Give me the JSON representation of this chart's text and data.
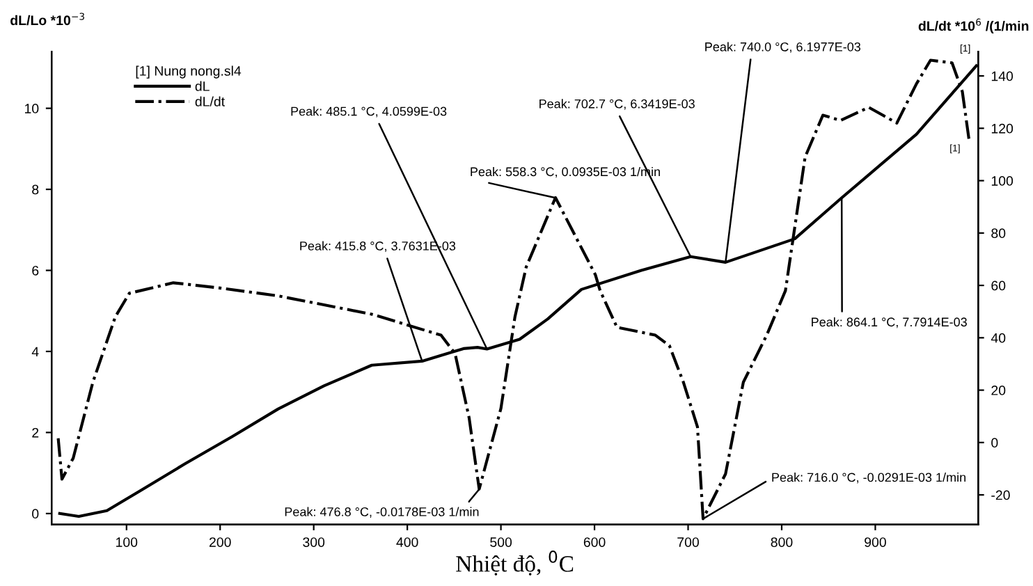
{
  "chart_data": {
    "type": "line",
    "xlabel": "Nhiệt độ, $^{0}$C",
    "ylabel": "dL/Lo *10$^{−3}$",
    "y2label": "dL/dt *10$^{6}$ /(1/min",
    "legend_title": "[1] Nung nong.sl4",
    "legend": "top left",
    "grid": false,
    "xlim": [
      20,
      1010
    ],
    "xticks": [
      100,
      200,
      300,
      400,
      500,
      600,
      700,
      800,
      900
    ],
    "ylim": [
      -0.27,
      11.4
    ],
    "yticks": [
      0,
      2,
      4,
      6,
      8,
      10
    ],
    "y2lim": [
      -31.3,
      149.3
    ],
    "y2ticks": [
      -20,
      0,
      20,
      40,
      60,
      80,
      100,
      120,
      140
    ],
    "series": [
      {
        "name": "dL",
        "color": "#000000",
        "line_style": "solid",
        "x": [
          28.6,
          49,
          79,
          113,
          162,
          213,
          262,
          311,
          362,
          415.8,
          460,
          475,
          485.1,
          520,
          550,
          586,
          650,
          702.7,
          740.0,
          814,
          864.1,
          944,
          1008
        ],
        "values": [
          0,
          -0.07,
          0.07,
          0.54,
          1.22,
          1.9,
          2.58,
          3.15,
          3.66,
          3.76,
          4.07,
          4.1,
          4.06,
          4.3,
          4.8,
          5.53,
          6.0,
          6.34,
          6.2,
          6.78,
          7.79,
          9.36,
          11.05
        ]
      },
      {
        "name": "dL/dt",
        "color": "#000000",
        "line_style": "dashdot",
        "axis": "y2",
        "x": [
          27,
          31,
          43,
          64,
          88,
          103,
          150,
          200,
          262,
          362,
          436,
          451,
          466,
          476.8,
          500,
          515,
          527,
          558.3,
          601,
          606,
          624,
          665,
          680,
          695,
          710,
          716.0,
          740,
          759,
          784,
          804,
          825,
          844,
          863,
          893,
          923,
          944,
          959,
          982,
          993,
          1000
        ],
        "values": [
          1.6,
          -14,
          -6,
          23,
          48,
          57,
          61,
          59,
          56,
          49,
          41,
          34,
          9.5,
          -17.8,
          13,
          48,
          67,
          93.5,
          64,
          58,
          44,
          41,
          37,
          23,
          6,
          -29.1,
          -12,
          23,
          41,
          58,
          109,
          125,
          123,
          128,
          122,
          137,
          146,
          145,
          134,
          116
        ]
      }
    ],
    "annotations": [
      {
        "text": "Peak: 415.8 °C, 3.7631E-03",
        "x": 415.8,
        "y": 3.76
      },
      {
        "text": "Peak: 485.1 °C, 4.0599E-03",
        "x": 485.1,
        "y": 4.06
      },
      {
        "text": "Peak: 702.7 °C, 6.3419E-03",
        "x": 702.7,
        "y": 6.34
      },
      {
        "text": "Peak: 740.0 °C, 6.1977E-03",
        "x": 740.0,
        "y": 6.2
      },
      {
        "text": "Peak: 864.1 °C, 7.7914E-03",
        "x": 864.1,
        "y": 7.79
      },
      {
        "text": "[1]",
        "x": 1008,
        "y": 11.05
      },
      {
        "text": "Peak: 476.8 °C, -0.0178E-03 1/min",
        "x": 476.8,
        "y": 0.6
      },
      {
        "text": "Peak: 558.3 °C, 0.0935E-03 1/min",
        "x": 558.3,
        "y": 7.79
      },
      {
        "text": "Peak: 716.0 °C, -0.0291E-03 1/min",
        "x": 716.0,
        "y": -0.13
      },
      {
        "text": "[1]",
        "x": 1000,
        "y": 9.24
      }
    ]
  }
}
